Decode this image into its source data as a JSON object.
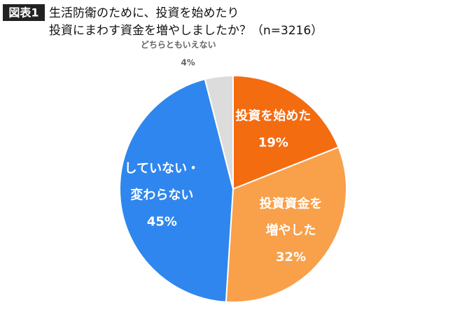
{
  "chart_data": {
    "type": "pie",
    "figure_label": "図表1",
    "title": [
      "生活防衛のために、投資を始めたり",
      "投資にまわす資金を増やしましたか？（n=3216）"
    ],
    "categories": [
      "投資を始めた",
      "投資資金を\n増やした",
      "していない・\n変わらない",
      "どちらともいえない"
    ],
    "values": [
      19,
      32,
      45,
      4
    ],
    "value_labels": [
      "19%",
      "32%",
      "45%",
      "4%"
    ],
    "colors": [
      "#f36c10",
      "#f8a04a",
      "#2f86ee",
      "#dcdcdc"
    ],
    "label_inside": [
      true,
      true,
      true,
      false
    ]
  }
}
